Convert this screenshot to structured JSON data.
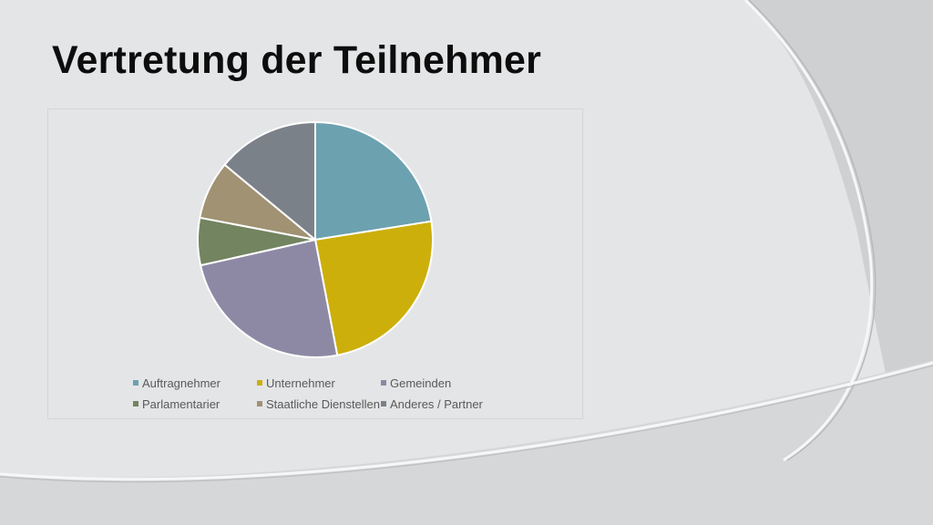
{
  "slide": {
    "title": "Vertretung der Teilnehmer"
  },
  "chart_data": {
    "type": "pie",
    "title": "",
    "legend_position": "bottom",
    "slices": [
      {
        "label": "Auftragnehmer",
        "value": 22.5,
        "color": "#6ca1b0"
      },
      {
        "label": "Unternehmer",
        "value": 24.5,
        "color": "#ccaf0b"
      },
      {
        "label": "Gemeinden",
        "value": 24.5,
        "color": "#8d89a5"
      },
      {
        "label": "Parlamentarier",
        "value": 6.5,
        "color": "#738460"
      },
      {
        "label": "Staatliche Dienstellen",
        "value": 8.0,
        "color": "#a09272"
      },
      {
        "label": "Anderes / Partner",
        "value": 14.0,
        "color": "#7b8189"
      }
    ]
  }
}
